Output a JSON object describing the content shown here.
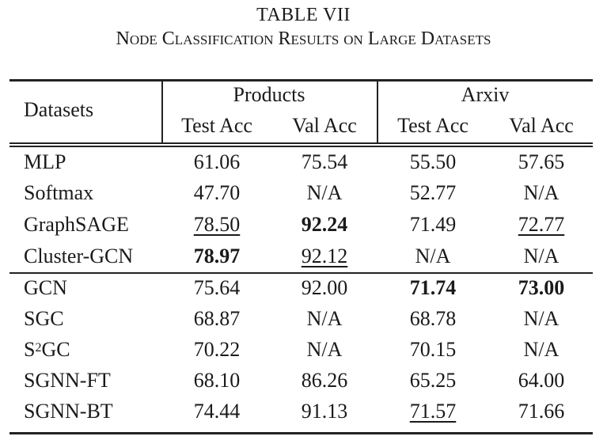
{
  "table": {
    "number": "TABLE VII",
    "caption": "Node Classification Results on Large Datasets",
    "header": {
      "datasets": "Datasets",
      "group1": "Products",
      "group2": "Arxiv",
      "sub": [
        "Test Acc",
        "Val Acc",
        "Test Acc",
        "Val Acc"
      ]
    },
    "rows": [
      {
        "name": "MLP",
        "values": [
          "61.06",
          "75.54",
          "55.50",
          "57.65"
        ],
        "bold": [],
        "underline": []
      },
      {
        "name": "Softmax",
        "values": [
          "47.70",
          "N/A",
          "52.77",
          "N/A"
        ],
        "bold": [],
        "underline": []
      },
      {
        "name": "GraphSAGE",
        "values": [
          "78.50",
          "92.24",
          "71.49",
          "72.77"
        ],
        "bold": [
          1
        ],
        "underline": [
          0,
          3
        ]
      },
      {
        "name": "Cluster-GCN",
        "values": [
          "78.97",
          "92.12",
          "N/A",
          "N/A"
        ],
        "bold": [
          0
        ],
        "underline": [
          1
        ]
      },
      {
        "name": "GCN",
        "values": [
          "75.64",
          "92.00",
          "71.74",
          "73.00"
        ],
        "bold": [
          2,
          3
        ],
        "underline": []
      },
      {
        "name": "SGC",
        "values": [
          "68.87",
          "N/A",
          "68.78",
          "N/A"
        ],
        "bold": [],
        "underline": []
      },
      {
        "name": "S2GC",
        "name_base": "S",
        "name_sup": "2",
        "name_rest": "GC",
        "values": [
          "70.22",
          "N/A",
          "70.15",
          "N/A"
        ],
        "bold": [],
        "underline": []
      },
      {
        "name": "SGNN-FT",
        "values": [
          "68.10",
          "86.26",
          "65.25",
          "64.00"
        ],
        "bold": [],
        "underline": []
      },
      {
        "name": "SGNN-BT",
        "values": [
          "74.44",
          "91.13",
          "71.57",
          "71.66"
        ],
        "bold": [],
        "underline": [
          2
        ]
      }
    ]
  }
}
